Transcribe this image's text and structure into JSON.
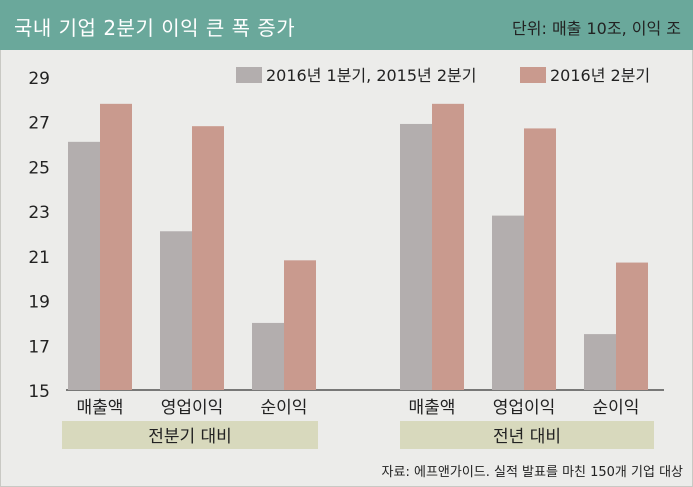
{
  "header": {
    "title": "국내 기업 2분기 이익 큰 폭 증가",
    "unit": "단위: 매출 10조, 이익 조"
  },
  "colors": {
    "header_bg": "#6aa89b",
    "series_prev": "#b3aeae",
    "series_curr": "#c99a8e",
    "group_band": "#d8d9bd"
  },
  "chart_data": {
    "type": "bar",
    "ylim": [
      15,
      29
    ],
    "yticks": [
      15,
      17,
      19,
      21,
      23,
      25,
      27,
      29
    ],
    "grid": false,
    "legend_position": "top-right",
    "groups": [
      {
        "label": "전분기 대비",
        "categories": [
          "매출액",
          "영업이익",
          "순이익"
        ],
        "series": [
          {
            "name": "2016년 1분기, 2015년 2분기",
            "values": [
              26.1,
              22.1,
              18.0
            ]
          },
          {
            "name": "2016년 2분기",
            "values": [
              27.8,
              26.8,
              20.8
            ]
          }
        ]
      },
      {
        "label": "전년 대비",
        "categories": [
          "매출액",
          "영업이익",
          "순이익"
        ],
        "series": [
          {
            "name": "2016년 1분기, 2015년 2분기",
            "values": [
              26.9,
              22.8,
              17.5
            ]
          },
          {
            "name": "2016년 2분기",
            "values": [
              27.8,
              26.7,
              20.7
            ]
          }
        ]
      }
    ]
  },
  "footer": {
    "source": "자료: 에프앤가이드. 실적 발표를 마친 150개 기업 대상"
  }
}
